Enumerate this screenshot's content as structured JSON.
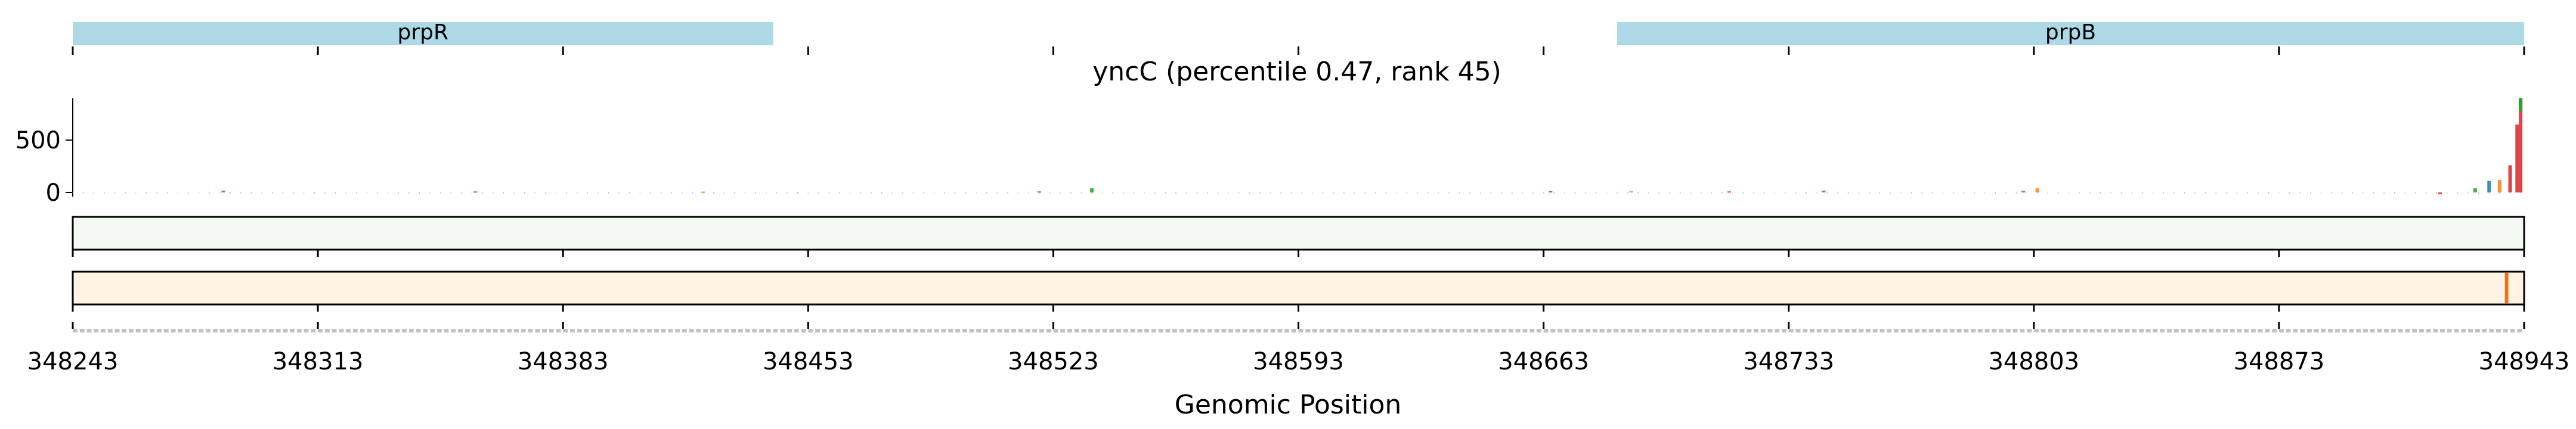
{
  "chart_data": {
    "type": "track",
    "title": "yncC (percentile 0.47, rank 45)",
    "xlabel": "Genomic Position",
    "xlim": [
      348243,
      348943
    ],
    "x_ticks": [
      348243,
      348313,
      348383,
      348453,
      348523,
      348593,
      348663,
      348733,
      348803,
      348873,
      348943
    ],
    "genes": [
      {
        "name": "prpR",
        "start": 348243,
        "end": 348443,
        "color": "#add8e6"
      },
      {
        "name": "prpB",
        "start": 348684,
        "end": 348943,
        "color": "#add8e6"
      }
    ],
    "signal": {
      "ylim": [
        -40,
        900
      ],
      "y_ticks": [
        0,
        500
      ],
      "base_colors": {
        "A": "#2ca02c",
        "C": "#1f77b4",
        "G": "#ff7f0e",
        "T": "#d62728"
      },
      "peaks": [
        {
          "x": 348286,
          "value": 18
        },
        {
          "x": 348358,
          "value": 10
        },
        {
          "x": 348423,
          "value": 8
        },
        {
          "x": 348519,
          "value": 10
        },
        {
          "x": 348534,
          "value": 40
        },
        {
          "x": 348665,
          "value": 14
        },
        {
          "x": 348688,
          "value": 12
        },
        {
          "x": 348716,
          "value": 10
        },
        {
          "x": 348743,
          "value": 18
        },
        {
          "x": 348800,
          "value": 14
        },
        {
          "x": 348804,
          "value": 40
        },
        {
          "x": 348919,
          "value": -18
        },
        {
          "x": 348929,
          "value": 40
        },
        {
          "x": 348933,
          "value": 110
        },
        {
          "x": 348936,
          "value": 120
        },
        {
          "x": 348939,
          "value": 260
        },
        {
          "x": 348941,
          "value": 650
        },
        {
          "x": 348942,
          "value": 870
        }
      ]
    },
    "heat_tracks": [
      {
        "name": "track-1",
        "background": "#f3faf1",
        "highlights": []
      },
      {
        "name": "track-2",
        "background": "#fff3e6",
        "highlights": [
          {
            "x": 348938,
            "color": "#e8741f"
          }
        ]
      }
    ]
  }
}
